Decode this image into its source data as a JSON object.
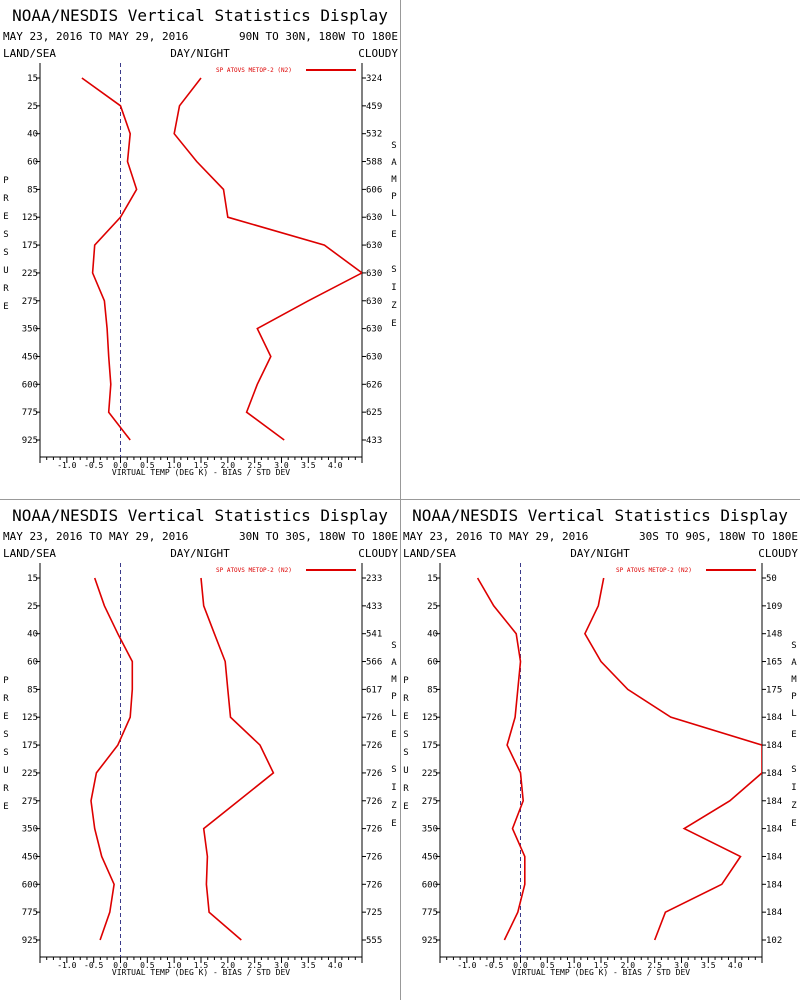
{
  "panel_title": "NOAA/NESDIS Vertical Statistics Display",
  "date_range": "MAY 23, 2016 TO MAY 29, 2016",
  "labels": {
    "land_sea": "LAND/SEA",
    "day_night": "DAY/NIGHT",
    "cloudy": "CLOUDY",
    "left_axis_word": "PRESSURE",
    "right_axis_word": "SAMPLE SIZE"
  },
  "colors": {
    "series": "#dd0000",
    "zero_line": "#3a3a8a",
    "axis": "#000000"
  },
  "chart_data": [
    {
      "type": "line",
      "region": "90N TO 30N, 180W TO 180E",
      "legend": "SP ATOVS METOP-2 (N2)",
      "xlabel": "VIRTUAL TEMP (DEG K) - BIAS / STD DEV",
      "xlim": [
        -1.5,
        4.5
      ],
      "xticks": [
        "-1.0",
        "-0.5",
        "0.0",
        "0.5",
        "1.0",
        "1.5",
        "2.0",
        "2.5",
        "3.0",
        "3.5",
        "4.0"
      ],
      "pressure_levels": [
        "15",
        "25",
        "40",
        "60",
        "85",
        "125",
        "175",
        "225",
        "275",
        "350",
        "450",
        "600",
        "775",
        "925"
      ],
      "bias": [
        -0.72,
        0.0,
        0.18,
        0.13,
        0.3,
        0.0,
        -0.48,
        -0.52,
        -0.3,
        -0.25,
        -0.22,
        -0.18,
        -0.22,
        0.18
      ],
      "std_dev": [
        1.5,
        1.1,
        1.0,
        1.42,
        1.92,
        2.0,
        3.8,
        4.5,
        3.5,
        2.55,
        2.8,
        2.55,
        2.35,
        3.05
      ],
      "sample_size": [
        "324",
        "459",
        "532",
        "588",
        "606",
        "630",
        "630",
        "630",
        "630",
        "630",
        "630",
        "626",
        "625",
        "433"
      ]
    },
    {
      "type": "line",
      "region": "30N TO 30S, 180W TO 180E",
      "legend": "SP ATOVS METOP-2 (N2)",
      "xlabel": "VIRTUAL TEMP (DEG K) - BIAS / STD DEV",
      "xlim": [
        -1.5,
        4.5
      ],
      "xticks": [
        "-1.0",
        "-0.5",
        "0.0",
        "0.5",
        "1.0",
        "1.5",
        "2.0",
        "2.5",
        "3.0",
        "3.5",
        "4.0"
      ],
      "pressure_levels": [
        "15",
        "25",
        "40",
        "60",
        "85",
        "125",
        "175",
        "225",
        "275",
        "350",
        "450",
        "600",
        "775",
        "925"
      ],
      "bias": [
        -0.48,
        -0.3,
        -0.05,
        0.22,
        0.22,
        0.18,
        -0.05,
        -0.45,
        -0.55,
        -0.48,
        -0.35,
        -0.12,
        -0.2,
        -0.38
      ],
      "std_dev": [
        1.5,
        1.55,
        1.75,
        1.95,
        2.0,
        2.05,
        2.6,
        2.85,
        2.2,
        1.55,
        1.62,
        1.6,
        1.65,
        2.25
      ],
      "sample_size": [
        "233",
        "433",
        "541",
        "566",
        "617",
        "726",
        "726",
        "726",
        "726",
        "726",
        "726",
        "726",
        "725",
        "555"
      ]
    },
    {
      "type": "line",
      "region": "30S TO 90S, 180W TO 180E",
      "legend": "SP ATOVS METOP-2 (N2)",
      "xlabel": "VIRTUAL TEMP (DEG K) - BIAS / STD DEV",
      "xlim": [
        -1.5,
        4.5
      ],
      "xticks": [
        "-1.0",
        "-0.5",
        "0.0",
        "0.5",
        "1.0",
        "1.5",
        "2.0",
        "2.5",
        "3.0",
        "3.5",
        "4.0"
      ],
      "pressure_levels": [
        "15",
        "25",
        "40",
        "60",
        "85",
        "125",
        "175",
        "225",
        "275",
        "350",
        "450",
        "600",
        "775",
        "925"
      ],
      "bias": [
        -0.8,
        -0.5,
        -0.08,
        0.0,
        -0.05,
        -0.1,
        -0.25,
        0.0,
        0.05,
        -0.15,
        0.08,
        0.08,
        -0.05,
        -0.3
      ],
      "std_dev": [
        1.55,
        1.45,
        1.2,
        1.5,
        2.0,
        2.8,
        4.5,
        4.5,
        3.9,
        3.05,
        4.1,
        3.75,
        2.7,
        2.5
      ],
      "sample_size": [
        "50",
        "109",
        "148",
        "165",
        "175",
        "184",
        "184",
        "184",
        "184",
        "184",
        "184",
        "184",
        "184",
        "102"
      ]
    }
  ]
}
